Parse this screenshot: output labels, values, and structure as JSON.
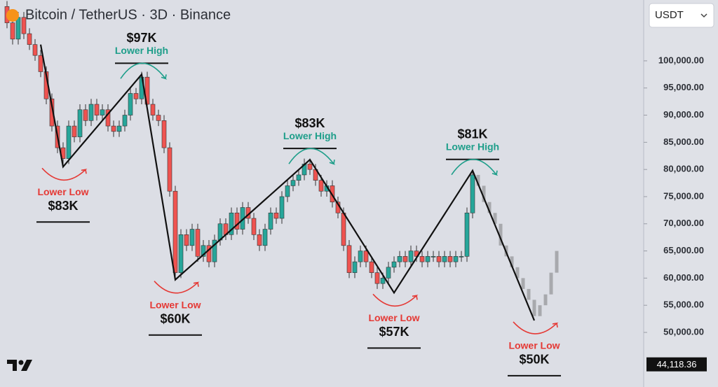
{
  "header": {
    "title": "Bitcoin / TetherUS · 3D · Binance",
    "currency": "USDT"
  },
  "chart_data": {
    "type": "candlestick",
    "open": [
      110000,
      107000,
      104000,
      108000,
      105000,
      103000,
      101000,
      98000,
      93000,
      88000,
      84000,
      82000,
      88000,
      86000,
      91000,
      89000,
      92000,
      90000,
      91000,
      88000,
      87000,
      88000,
      90000,
      94000,
      93000,
      97000,
      92000,
      90000,
      89000,
      84000,
      76000,
      61000,
      68000,
      66000,
      69000,
      64000,
      66000,
      63000,
      67000,
      70000,
      68000,
      72000,
      69000,
      73000,
      71000,
      68000,
      66000,
      69000,
      72000,
      71000,
      75000,
      77000,
      78000,
      79000,
      81000,
      80000,
      78000,
      76000,
      77000,
      74000,
      72000,
      66000,
      61000,
      63000,
      65000,
      63000,
      61000,
      59000,
      60000,
      62000,
      63000,
      64000,
      63000,
      65000,
      64000,
      63000,
      64000,
      64000,
      63000,
      64000,
      63000,
      64000,
      64000,
      72000
    ],
    "high": [
      111000,
      108000,
      109000,
      109000,
      106000,
      104000,
      102000,
      99000,
      94000,
      89000,
      85000,
      89000,
      89000,
      92000,
      92000,
      93000,
      93000,
      92000,
      92000,
      89000,
      89000,
      91000,
      95000,
      95000,
      98000,
      98000,
      93000,
      91000,
      90000,
      85000,
      77000,
      69000,
      69000,
      70000,
      70000,
      67000,
      67000,
      68000,
      71000,
      71000,
      73000,
      73000,
      74000,
      74000,
      72000,
      69000,
      70000,
      73000,
      73000,
      76000,
      78000,
      79000,
      80000,
      82000,
      82000,
      81000,
      79000,
      78000,
      78000,
      75000,
      73000,
      67000,
      64000,
      66000,
      66000,
      64000,
      62000,
      61000,
      63000,
      64000,
      65000,
      65000,
      66000,
      66000,
      65000,
      65000,
      65000,
      65000,
      65000,
      65000,
      65000,
      65000,
      73000,
      80000
    ],
    "low": [
      106000,
      103000,
      103000,
      104000,
      102000,
      100000,
      97000,
      92000,
      87000,
      83000,
      81000,
      81000,
      85000,
      85000,
      88000,
      88000,
      89000,
      89000,
      87000,
      86000,
      86000,
      87000,
      89000,
      92000,
      92000,
      91000,
      89000,
      88000,
      83000,
      75000,
      60000,
      60000,
      65000,
      65000,
      63000,
      63000,
      62000,
      62000,
      66000,
      67000,
      67000,
      68000,
      68000,
      70000,
      67000,
      65000,
      65000,
      68000,
      70000,
      70000,
      74000,
      76000,
      77000,
      78000,
      79000,
      77000,
      75000,
      75000,
      73000,
      71000,
      65000,
      60000,
      60000,
      62000,
      62000,
      60000,
      58000,
      58000,
      59000,
      61000,
      62000,
      62000,
      62000,
      63000,
      62000,
      62000,
      63000,
      62000,
      62000,
      62000,
      62000,
      63000,
      63000,
      71000
    ],
    "close": [
      107000,
      104000,
      108000,
      105000,
      103000,
      101000,
      98000,
      93000,
      88000,
      84000,
      82000,
      88000,
      86000,
      91000,
      89000,
      92000,
      90000,
      91000,
      88000,
      87000,
      88000,
      90000,
      94000,
      93000,
      97000,
      92000,
      90000,
      89000,
      84000,
      76000,
      61000,
      68000,
      66000,
      69000,
      64000,
      66000,
      63000,
      67000,
      70000,
      68000,
      72000,
      69000,
      73000,
      71000,
      68000,
      66000,
      69000,
      72000,
      71000,
      75000,
      77000,
      78000,
      79000,
      81000,
      80000,
      78000,
      76000,
      77000,
      74000,
      72000,
      66000,
      61000,
      63000,
      65000,
      63000,
      61000,
      59000,
      60000,
      62000,
      63000,
      64000,
      63000,
      65000,
      64000,
      63000,
      64000,
      64000,
      63000,
      64000,
      63000,
      64000,
      64000,
      72000,
      79000
    ],
    "up_color": "#26a69a",
    "down_color": "#ef5350",
    "projection": {
      "open": [
        79000,
        77000,
        74000,
        72000,
        70000,
        66000,
        64000,
        62000,
        60000,
        58000,
        56000,
        53000,
        55000,
        57000,
        61000
      ],
      "close": [
        77000,
        74000,
        72000,
        70000,
        66000,
        64000,
        62000,
        60000,
        58000,
        56000,
        53000,
        55000,
        57000,
        61000,
        65000
      ],
      "color": "#a8a9ad"
    },
    "zigzag": {
      "x": [
        6,
        10,
        24,
        30,
        54,
        69,
        83,
        94
      ],
      "y": [
        103000,
        80500,
        97500,
        59700,
        81800,
        57300,
        79800,
        52200
      ],
      "color": "#111111"
    },
    "annotations": {
      "low_color": "#e53935",
      "high_color": "#1e9e8a",
      "items": [
        {
          "label": "Lower Low",
          "price": "$83K"
        },
        {
          "label": "Lower High",
          "price": "$97K"
        },
        {
          "label": "Lower Low",
          "price": "$60K"
        },
        {
          "label": "Lower High",
          "price": "$83K"
        },
        {
          "label": "Lower Low",
          "price": "$57K"
        },
        {
          "label": "Lower High",
          "price": "$81K"
        },
        {
          "label": "Lower Low",
          "price": "$50K"
        }
      ]
    },
    "ylim": [
      39950,
      111200
    ],
    "yticks": [
      {
        "value": 50000,
        "label": "50,000.00"
      },
      {
        "value": 55000,
        "label": "55,000.00"
      },
      {
        "value": 60000,
        "label": "60,000.00"
      },
      {
        "value": 65000,
        "label": "65,000.00"
      },
      {
        "value": 70000,
        "label": "70,000.00"
      },
      {
        "value": 75000,
        "label": "75,000.00"
      },
      {
        "value": 80000,
        "label": "80,000.00"
      },
      {
        "value": 85000,
        "label": "85,000.00"
      },
      {
        "value": 90000,
        "label": "90,000.00"
      },
      {
        "value": 95000,
        "label": "95,000.00"
      },
      {
        "value": 100000,
        "label": "100,000.00"
      }
    ],
    "last_price": {
      "value": 44118.36,
      "label": "44,118.36"
    }
  }
}
